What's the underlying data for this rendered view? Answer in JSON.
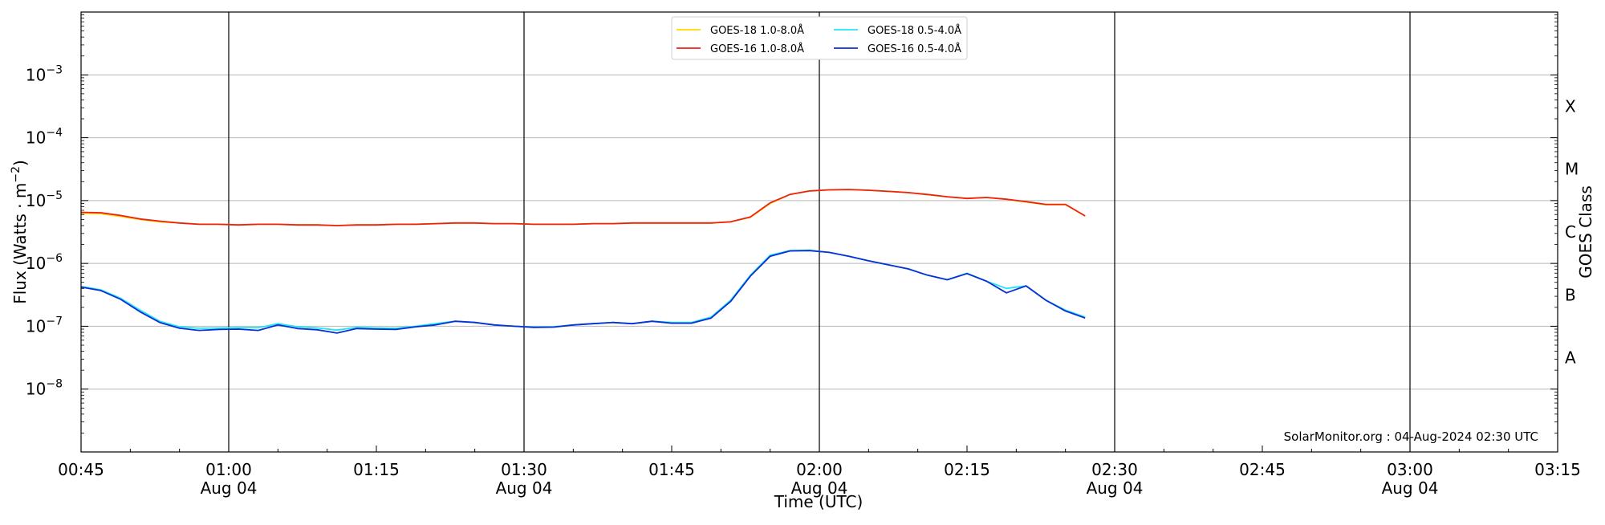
{
  "chart_data": {
    "type": "line",
    "title": "",
    "xlabel": "Time (UTC)",
    "ylabel": "Flux (Watts · m",
    "ylabel_exponent": "−2",
    "ylabel_suffix": ")",
    "right_label": "GOES Class",
    "yscale": "log",
    "ylim_exp": [
      -9,
      -2
    ],
    "xlim_minutes": [
      45,
      195
    ],
    "grid": "horizontal at decades",
    "legend_placement": "top-center",
    "x_ticks": [
      {
        "minute": 45,
        "time": "00:45",
        "date": ""
      },
      {
        "minute": 60,
        "time": "01:00",
        "date": "Aug 04"
      },
      {
        "minute": 75,
        "time": "01:15",
        "date": ""
      },
      {
        "minute": 90,
        "time": "01:30",
        "date": "Aug 04"
      },
      {
        "minute": 105,
        "time": "01:45",
        "date": ""
      },
      {
        "minute": 120,
        "time": "02:00",
        "date": "Aug 04"
      },
      {
        "minute": 135,
        "time": "02:15",
        "date": ""
      },
      {
        "minute": 150,
        "time": "02:30",
        "date": "Aug 04"
      },
      {
        "minute": 165,
        "time": "02:45",
        "date": ""
      },
      {
        "minute": 180,
        "time": "03:00",
        "date": "Aug 04"
      },
      {
        "minute": 195,
        "time": "03:15",
        "date": ""
      }
    ],
    "y_ticks": [
      {
        "exp": -3,
        "base": "10",
        "sup": "−3"
      },
      {
        "exp": -4,
        "base": "10",
        "sup": "−4"
      },
      {
        "exp": -5,
        "base": "10",
        "sup": "−5"
      },
      {
        "exp": -6,
        "base": "10",
        "sup": "−6"
      },
      {
        "exp": -7,
        "base": "10",
        "sup": "−7"
      },
      {
        "exp": -8,
        "base": "10",
        "sup": "−8"
      }
    ],
    "class_labels": [
      {
        "label": "X",
        "exp": -3.5
      },
      {
        "label": "M",
        "exp": -4.5
      },
      {
        "label": "C",
        "exp": -5.5
      },
      {
        "label": "B",
        "exp": -6.5
      },
      {
        "label": "A",
        "exp": -7.5
      }
    ],
    "vlines_minutes": [
      60,
      90,
      120,
      150,
      180
    ],
    "credit": "SolarMonitor.org : 04-Aug-2024 02:30 UTC",
    "x": [
      45,
      47,
      49,
      51,
      53,
      55,
      57,
      59,
      61,
      63,
      65,
      67,
      69,
      71,
      73,
      75,
      77,
      79,
      81,
      83,
      85,
      87,
      89,
      91,
      93,
      95,
      97,
      99,
      101,
      103,
      105,
      107,
      109,
      111,
      113,
      115,
      117,
      119,
      121,
      123,
      125,
      127,
      129,
      131,
      133,
      135,
      137,
      139,
      141,
      143,
      145,
      147
    ],
    "series": [
      {
        "name": "GOES-18 1.0-8.0Å",
        "color": "#ffd700",
        "values": [
          6.3e-06,
          6.2e-06,
          5.6e-06,
          5e-06,
          4.6e-06,
          4.4e-06,
          4.2e-06,
          4.2e-06,
          4.1e-06,
          4.2e-06,
          4.2e-06,
          4.1e-06,
          4.1e-06,
          4e-06,
          4.1e-06,
          4.1e-06,
          4.2e-06,
          4.2e-06,
          4.3e-06,
          4.4e-06,
          4.4e-06,
          4.3e-06,
          4.3e-06,
          4.2e-06,
          4.2e-06,
          4.2e-06,
          4.3e-06,
          4.3e-06,
          4.4e-06,
          4.4e-06,
          4.4e-06,
          4.4e-06,
          4.4e-06,
          4.6e-06,
          5.4e-06,
          9e-06,
          1.25e-05,
          1.42e-05,
          1.48e-05,
          1.5e-05,
          1.46e-05,
          1.4e-05,
          1.34e-05,
          1.25e-05,
          1.15e-05,
          1.08e-05,
          1.12e-05,
          1.05e-05,
          9.5e-06,
          8.6e-06,
          8.6e-06,
          5.7e-06
        ]
      },
      {
        "name": "GOES-16 1.0-8.0Å",
        "color": "#ee2211",
        "values": [
          6.5e-06,
          6.4e-06,
          5.8e-06,
          5.1e-06,
          4.7e-06,
          4.4e-06,
          4.2e-06,
          4.2e-06,
          4.1e-06,
          4.2e-06,
          4.2e-06,
          4.1e-06,
          4.1e-06,
          4e-06,
          4.1e-06,
          4.1e-06,
          4.2e-06,
          4.2e-06,
          4.3e-06,
          4.4e-06,
          4.4e-06,
          4.3e-06,
          4.3e-06,
          4.2e-06,
          4.2e-06,
          4.2e-06,
          4.3e-06,
          4.3e-06,
          4.4e-06,
          4.4e-06,
          4.4e-06,
          4.4e-06,
          4.4e-06,
          4.6e-06,
          5.5e-06,
          9.2e-06,
          1.25e-05,
          1.42e-05,
          1.48e-05,
          1.5e-05,
          1.46e-05,
          1.4e-05,
          1.34e-05,
          1.25e-05,
          1.15e-05,
          1.08e-05,
          1.12e-05,
          1.05e-05,
          9.6e-06,
          8.7e-06,
          8.7e-06,
          5.7e-06
        ]
      },
      {
        "name": "GOES-18 0.5-4.0Å",
        "color": "#22e6f0",
        "values": [
          4.3e-07,
          3.8e-07,
          2.8e-07,
          1.8e-07,
          1.2e-07,
          9.8e-08,
          9.3e-08,
          9.4e-08,
          9.5e-08,
          9.5e-08,
          1.1e-07,
          9.8e-08,
          9.4e-08,
          8.7e-08,
          9.6e-08,
          9.4e-08,
          9.3e-08,
          1e-07,
          1.1e-07,
          1.2e-07,
          1.15e-07,
          1.05e-07,
          1e-07,
          9.7e-08,
          9.8e-08,
          1.05e-07,
          1.1e-07,
          1.15e-07,
          1.1e-07,
          1.2e-07,
          1.15e-07,
          1.15e-07,
          1.4e-07,
          2.6e-07,
          6.5e-07,
          1.35e-06,
          1.6e-06,
          1.62e-06,
          1.5e-06,
          1.3e-06,
          1.1e-06,
          9.5e-07,
          8.2e-07,
          6.5e-07,
          5.5e-07,
          7e-07,
          5.2e-07,
          4e-07,
          4.4e-07,
          2.6e-07,
          1.8e-07,
          1.4e-07
        ]
      },
      {
        "name": "GOES-16 0.5-4.0Å",
        "color": "#0a2fd6",
        "values": [
          4.2e-07,
          3.7e-07,
          2.7e-07,
          1.7e-07,
          1.15e-07,
          9.3e-08,
          8.6e-08,
          8.9e-08,
          9e-08,
          8.6e-08,
          1.05e-07,
          9.2e-08,
          8.8e-08,
          7.8e-08,
          9.2e-08,
          9e-08,
          8.9e-08,
          9.8e-08,
          1.05e-07,
          1.2e-07,
          1.15e-07,
          1.05e-07,
          1e-07,
          9.6e-08,
          9.7e-08,
          1.05e-07,
          1.1e-07,
          1.15e-07,
          1.1e-07,
          1.2e-07,
          1.12e-07,
          1.12e-07,
          1.35e-07,
          2.5e-07,
          6.3e-07,
          1.3e-06,
          1.58e-06,
          1.6e-06,
          1.5e-06,
          1.3e-06,
          1.1e-06,
          9.5e-07,
          8.2e-07,
          6.5e-07,
          5.5e-07,
          6.9e-07,
          5.2e-07,
          3.4e-07,
          4.4e-07,
          2.6e-07,
          1.75e-07,
          1.35e-07
        ]
      }
    ]
  }
}
